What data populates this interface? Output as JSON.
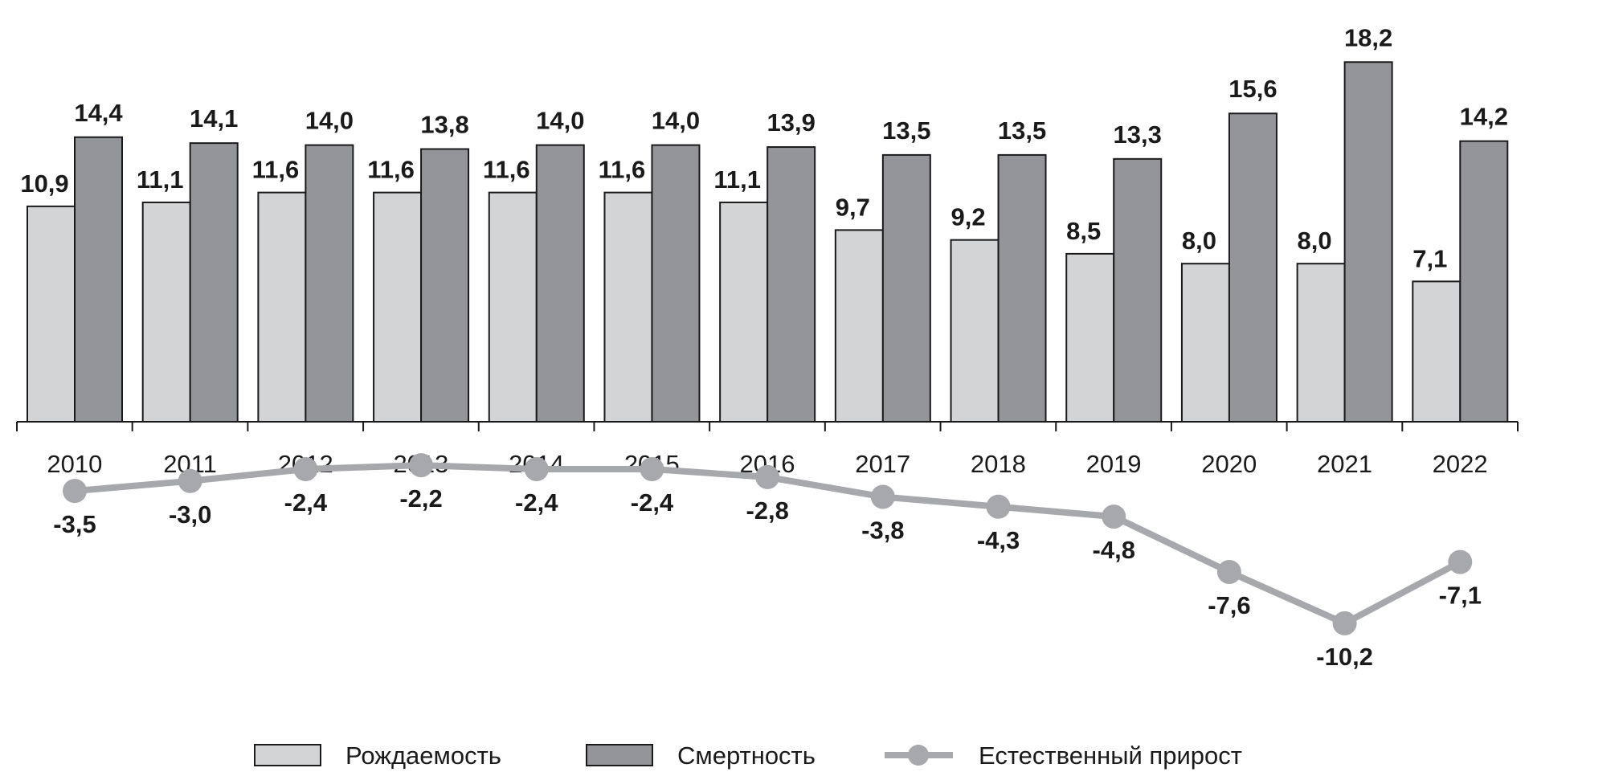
{
  "chart_data": {
    "type": "bar",
    "title": "",
    "xlabel": "",
    "ylabel": "",
    "categories": [
      "2010",
      "2011",
      "2012",
      "2013",
      "2014",
      "2015",
      "2016",
      "2017",
      "2018",
      "2019",
      "2020",
      "2021",
      "2022"
    ],
    "series": [
      {
        "name": "Рождаемость",
        "type": "bar",
        "color": "#d3d4d6",
        "values": [
          10.9,
          11.1,
          11.6,
          11.6,
          11.6,
          11.6,
          11.1,
          9.7,
          9.2,
          8.5,
          8.0,
          8.0,
          7.1
        ],
        "labels": [
          "10,9",
          "11,1",
          "11,6",
          "11,6",
          "11,6",
          "11,6",
          "11,1",
          "9,7",
          "9,2",
          "8,5",
          "8,0",
          "8,0",
          "7,1"
        ]
      },
      {
        "name": "Смертность",
        "type": "bar",
        "color": "#949599",
        "values": [
          14.4,
          14.1,
          14.0,
          13.8,
          14.0,
          14.0,
          13.9,
          13.5,
          13.5,
          13.3,
          15.6,
          18.2,
          14.2
        ],
        "labels": [
          "14,4",
          "14,1",
          "14,0",
          "13,8",
          "14,0",
          "14,0",
          "13,9",
          "13,5",
          "13,5",
          "13,3",
          "15,6",
          "18,2",
          "14,2"
        ]
      },
      {
        "name": "Естественный прирост",
        "type": "line",
        "color": "#a7a8ab",
        "values": [
          -3.5,
          -3.0,
          -2.4,
          -2.2,
          -2.4,
          -2.4,
          -2.8,
          -3.8,
          -4.3,
          -4.8,
          -7.6,
          -10.2,
          -7.1
        ],
        "labels": [
          "-3,5",
          "-3,0",
          "-2,4",
          "-2,2",
          "-2,4",
          "-2,4",
          "-2,8",
          "-3,8",
          "-4,3",
          "-4,8",
          "-7,6",
          "-10,2",
          "-7,1"
        ]
      }
    ],
    "ylim": [
      -11,
      19
    ],
    "grid": false,
    "legend": "bottom"
  }
}
